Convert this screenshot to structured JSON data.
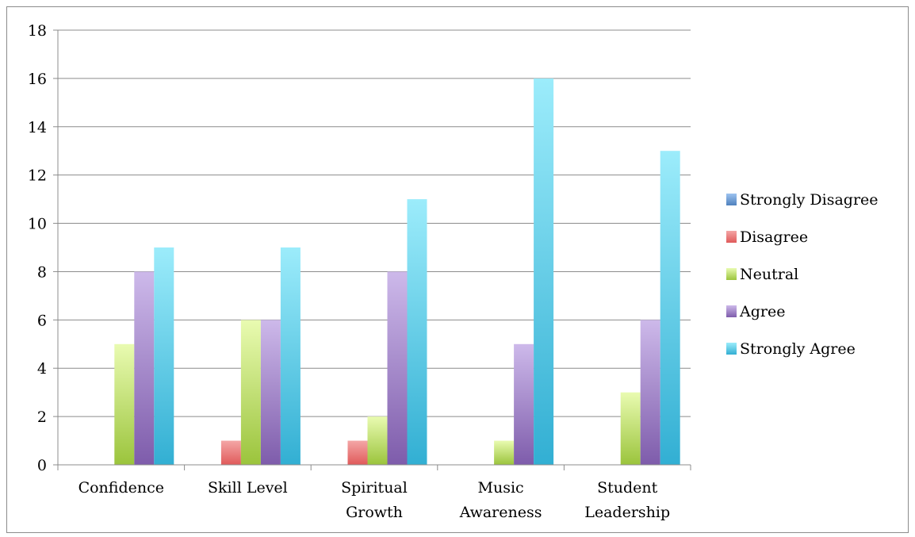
{
  "chart_data": {
    "type": "bar",
    "categories": [
      [
        "Confidence"
      ],
      [
        "Skill Level"
      ],
      [
        "Spiritual",
        "Growth"
      ],
      [
        "Music",
        "Awareness"
      ],
      [
        "Student",
        "Leadership"
      ]
    ],
    "series": [
      {
        "name": "Strongly Disagree",
        "color": "#4f81bd",
        "light": "#9dc3f0",
        "values": [
          0,
          0,
          0,
          0,
          0
        ]
      },
      {
        "name": "Disagree",
        "color": "#e05a5a",
        "light": "#f4a6a6",
        "values": [
          0,
          1,
          1,
          0,
          0
        ]
      },
      {
        "name": "Neutral",
        "color": "#9bc43c",
        "light": "#e9fbb1",
        "values": [
          5,
          6,
          2,
          1,
          3
        ]
      },
      {
        "name": "Agree",
        "color": "#7e5cab",
        "light": "#cdb9ea",
        "values": [
          8,
          6,
          8,
          5,
          6
        ]
      },
      {
        "name": "Strongly Agree",
        "color": "#32afd3",
        "light": "#9cecfb",
        "values": [
          9,
          9,
          11,
          16,
          13
        ]
      }
    ],
    "yticks": [
      "0",
      "2",
      "4",
      "6",
      "8",
      "10",
      "12",
      "14",
      "16",
      "18"
    ],
    "ylim": [
      0,
      18
    ],
    "grid": true,
    "legend_position": "right",
    "title": "",
    "xlabel": "",
    "ylabel": ""
  }
}
